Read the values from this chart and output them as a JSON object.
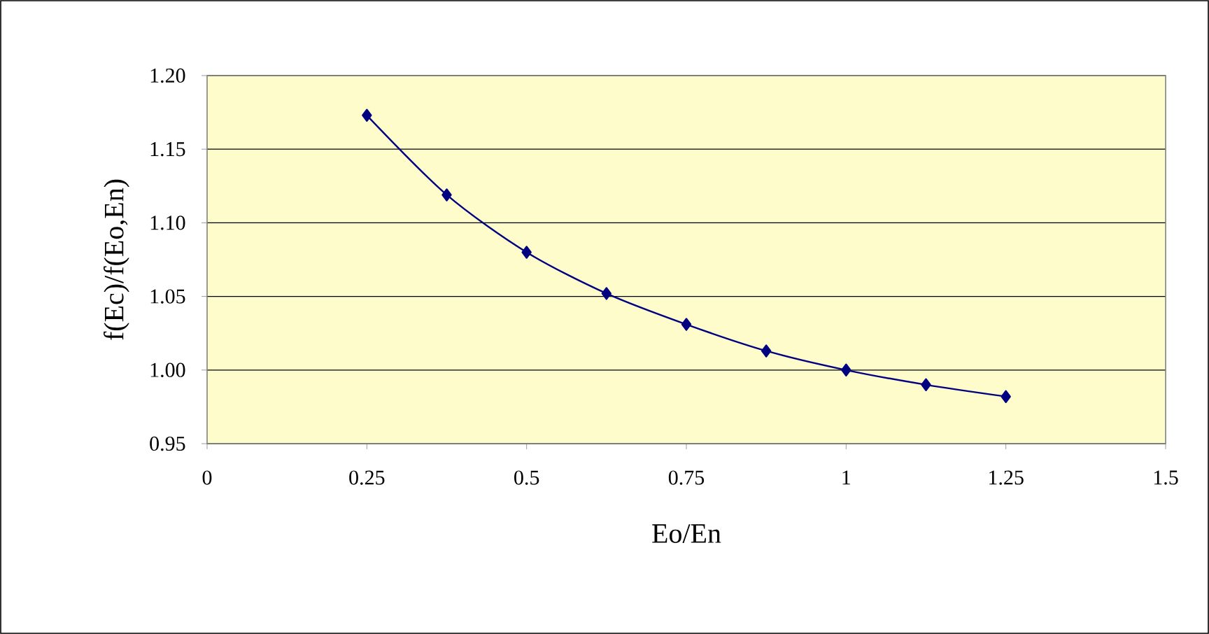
{
  "chart_data": {
    "type": "line",
    "xlabel": "Eo/En",
    "ylabel": "f(Ec)/f(Eo,En)",
    "x": [
      0.25,
      0.375,
      0.5,
      0.625,
      0.75,
      0.875,
      1,
      1.125,
      1.25
    ],
    "values": [
      1.173,
      1.119,
      1.08,
      1.052,
      1.031,
      1.013,
      1.0,
      0.99,
      0.982
    ],
    "color": "#000080",
    "marker": "diamond",
    "grid": "y",
    "xlim": [
      0,
      1.5
    ],
    "xticks": [
      0,
      0.25,
      0.5,
      0.75,
      1,
      1.25,
      1.5
    ],
    "ylim": [
      0.95,
      1.2
    ],
    "yticks": [
      {
        "value": 0.95,
        "label": "0.95"
      },
      {
        "value": 1.0,
        "label": "1.00"
      },
      {
        "value": 1.05,
        "label": "1.05"
      },
      {
        "value": 1.1,
        "label": "1.10"
      },
      {
        "value": 1.15,
        "label": "1.15"
      },
      {
        "value": 1.2,
        "label": "1.20"
      }
    ]
  }
}
